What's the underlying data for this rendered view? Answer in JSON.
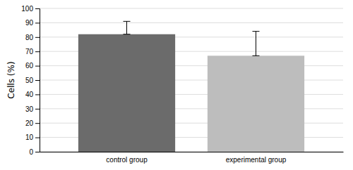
{
  "chart_data": {
    "type": "bar",
    "categories": [
      "control group",
      "experimental group"
    ],
    "values": [
      82,
      67
    ],
    "errors_upper": [
      9,
      17
    ],
    "errors_lower": [
      0,
      0
    ],
    "colors": [
      "#6b6b6b",
      "#bdbdbd"
    ],
    "ylabel": "Cells (%)",
    "ylim": [
      0,
      100
    ],
    "yticks": [
      0,
      10,
      20,
      30,
      40,
      50,
      60,
      70,
      80,
      90,
      100
    ],
    "grid": true
  }
}
